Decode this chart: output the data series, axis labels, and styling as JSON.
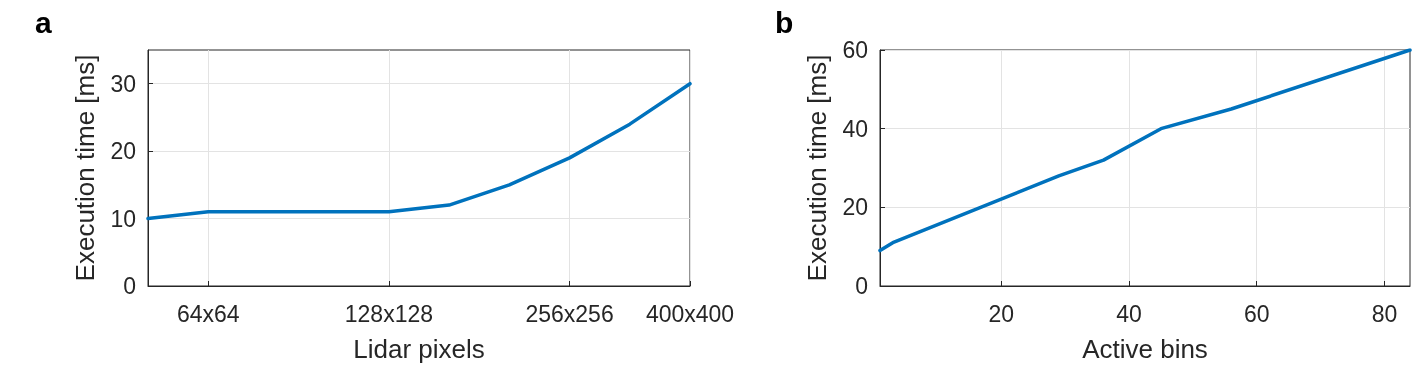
{
  "chart_data": [
    {
      "type": "line",
      "title": "a",
      "xlabel": "Lidar pixels",
      "ylabel": "Execution time [ms]",
      "grid": true,
      "categories": [
        null,
        "64x64",
        null,
        null,
        "128x128",
        null,
        null,
        "256x256",
        null,
        "400x400"
      ],
      "ylim": [
        0,
        35
      ],
      "yticks": [
        0,
        10,
        20,
        30
      ],
      "series": [
        {
          "color": "#0072bd",
          "values": [
            10,
            11,
            11,
            11,
            11,
            12,
            15,
            19,
            24,
            30
          ]
        }
      ]
    },
    {
      "type": "line",
      "title": "b",
      "xlabel": "Active bins",
      "ylabel": "Execution time [ms]",
      "grid": true,
      "xlim": [
        1,
        84
      ],
      "xticks": [
        20,
        40,
        60,
        80
      ],
      "ylim": [
        0,
        60
      ],
      "yticks": [
        0,
        20,
        40,
        60
      ],
      "series": [
        {
          "color": "#0072bd",
          "x": [
            1,
            3,
            29,
            36,
            45,
            56,
            84
          ],
          "values": [
            9,
            11,
            28,
            32,
            40,
            45,
            60
          ]
        }
      ]
    }
  ]
}
